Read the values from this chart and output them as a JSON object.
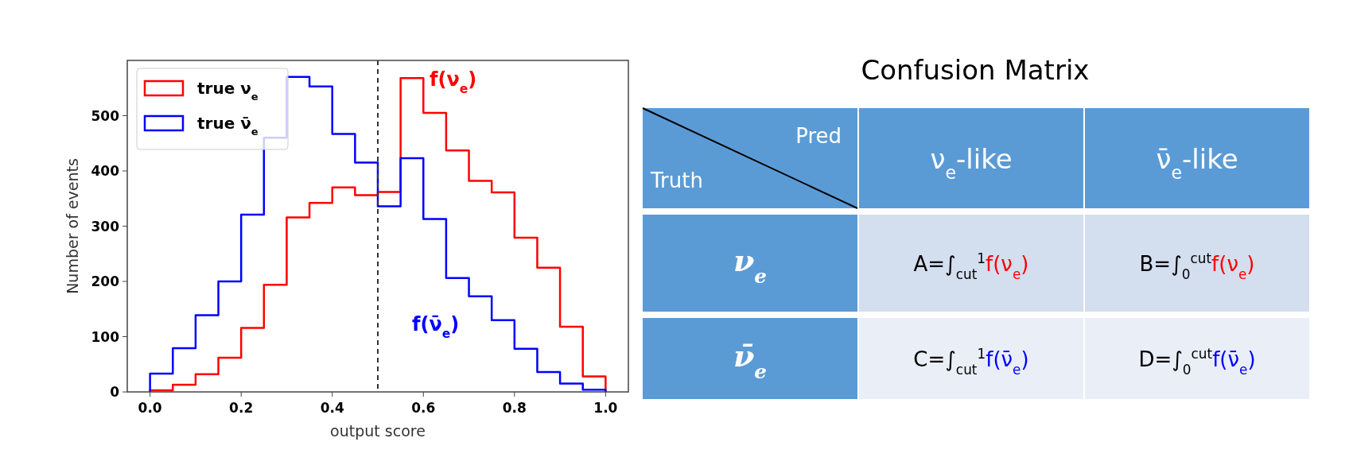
{
  "chart_data": [
    {
      "type": "histogram",
      "xlabel": "output score",
      "ylabel": "Number of events",
      "bins": [
        0,
        0.05,
        0.1,
        0.15,
        0.2,
        0.25,
        0.3,
        0.35,
        0.4,
        0.45,
        0.5,
        0.55,
        0.6,
        0.65,
        0.7,
        0.75,
        0.8,
        0.85,
        0.9,
        0.95,
        1.0
      ],
      "series": [
        {
          "name": "true ν$_{e}$",
          "color": "#ff0000",
          "values": [
            3,
            13,
            32,
            62,
            116,
            194,
            316,
            342,
            370,
            356,
            362,
            568,
            505,
            437,
            382,
            361,
            279,
            225,
            118,
            28
          ]
        },
        {
          "name": "true ν̄$_{e}$",
          "color": "#0000ff",
          "values": [
            33,
            79,
            139,
            200,
            321,
            460,
            570,
            553,
            467,
            415,
            336,
            423,
            313,
            206,
            173,
            130,
            78,
            36,
            15,
            4
          ]
        }
      ],
      "xlim": [
        -0.05,
        1.05
      ],
      "ylim": [
        0,
        600
      ],
      "xticks": [
        {
          "value": 0,
          "label": "0.0"
        },
        0.2,
        0.4,
        0.6,
        0.8,
        {
          "value": 1,
          "label": "1.0"
        }
      ],
      "yticks": [
        0,
        100,
        200,
        300,
        400,
        500
      ],
      "grid": false,
      "legend": "top left",
      "ref_lines": [
        {
          "axis": "x",
          "value": 0.5,
          "color": "#333333",
          "line_style": "dashed"
        }
      ],
      "annotations": [
        "f(ν$_{e}$)",
        "f(ν̄$_{e}$)"
      ]
    },
    {
      "type": "other",
      "title": "Confusion Matrix",
      "xlabel": "Pred",
      "ylabel": "Truth",
      "categories": [
        "ν$_{e}$-like",
        "ν̄$_{e}$-like"
      ],
      "y_categories": [
        "ν$_{e}$",
        "ν̄$_{e}$"
      ],
      "cell_labels": [
        [
          "A=∫$_{cut}$$^{1}$f(ν$_{e}$)",
          "B=∫$_{0}$$^{cut}$f(ν$_{e}$)"
        ],
        [
          "C=∫$_{cut}$$^{1}$f(ν̄$_{e}$)",
          "D=∫$_{0}$$^{cut}$f(ν̄$_{e}$)"
        ]
      ]
    }
  ]
}
